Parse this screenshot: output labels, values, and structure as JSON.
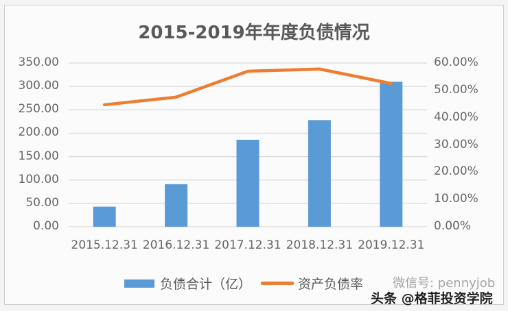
{
  "chart_data": {
    "type": "bar+line",
    "title": "2015-2019年年度负债情况",
    "categories": [
      "2015.12.31",
      "2016.12.31",
      "2017.12.31",
      "2018.12.31",
      "2019.12.31"
    ],
    "series": [
      {
        "name": "负债合计（亿）",
        "type": "bar",
        "axis": "left",
        "color": "#5b9bd5",
        "values": [
          43,
          91,
          186,
          228,
          310
        ]
      },
      {
        "name": "资产负债率",
        "type": "line",
        "axis": "right",
        "color": "#ed7d31",
        "values": [
          0.447,
          0.475,
          0.57,
          0.578,
          0.525
        ]
      }
    ],
    "y_left": {
      "ylim": [
        0,
        350
      ],
      "ticks": [
        "350.00",
        "300.00",
        "250.00",
        "200.00",
        "150.00",
        "100.00",
        "50.00",
        "0.00"
      ]
    },
    "y_right": {
      "ylim": [
        0,
        0.6
      ],
      "ticks": [
        "60.00%",
        "50.00%",
        "40.00%",
        "30.00%",
        "20.00%",
        "10.00%",
        "0.00%"
      ]
    },
    "xlabel": "",
    "ylabel": "",
    "grid": true,
    "legend_position": "bottom"
  },
  "legend": {
    "bar_label": "负债合计（亿）",
    "line_label": "资产负债率"
  },
  "watermark": {
    "line1": "微信号: pennyjob",
    "line2": "头条 @格菲投资学院"
  }
}
